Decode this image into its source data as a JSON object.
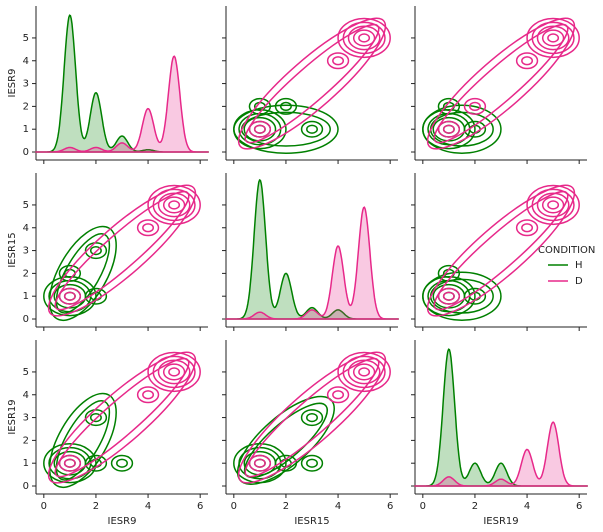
{
  "chart_data": {
    "type": "pairplot",
    "variables": [
      "IESR9",
      "IESR15",
      "IESR19"
    ],
    "legend_title": "CONDITION",
    "xlim": [
      -0.3,
      6.3
    ],
    "xticks": [
      0,
      2,
      4,
      6
    ],
    "ylim": [
      -0.35,
      6.4
    ],
    "yticks": [
      0,
      1,
      2,
      3,
      4,
      5
    ],
    "series": [
      {
        "name": "H",
        "color": "#008000",
        "diagonal": [
          [
            [
              1,
              6.0
            ],
            [
              2,
              2.6
            ],
            [
              3,
              0.7
            ],
            [
              4,
              0.1
            ]
          ],
          [
            [
              1,
              6.1
            ],
            [
              2,
              2.0
            ],
            [
              3,
              0.5
            ],
            [
              4,
              0.4
            ]
          ],
          [
            [
              1,
              6.0
            ],
            [
              2,
              1.0
            ],
            [
              3,
              1.0
            ]
          ]
        ],
        "peaks": [
          [
            null,
            [
              [
                1,
                1
              ],
              [
                1,
                2
              ],
              [
                2,
                2
              ],
              [
                3,
                1
              ]
            ],
            [
              [
                1,
                1
              ],
              [
                1,
                2
              ],
              [
                2,
                1
              ]
            ]
          ],
          [
            [
              [
                1,
                1
              ],
              [
                2,
                1
              ],
              [
                1,
                2
              ],
              [
                2,
                3
              ]
            ],
            null,
            [
              [
                1,
                1
              ],
              [
                1,
                2
              ],
              [
                2,
                1
              ]
            ]
          ],
          [
            [
              [
                1,
                1
              ],
              [
                2,
                1
              ],
              [
                3,
                1
              ],
              [
                2,
                3
              ]
            ],
            [
              [
                1,
                1
              ],
              [
                2,
                1
              ],
              [
                3,
                1
              ],
              [
                3,
                3
              ]
            ],
            null
          ]
        ]
      },
      {
        "name": "D",
        "color": "#e7298a",
        "diagonal": [
          [
            [
              1,
              0.2
            ],
            [
              2,
              0.2
            ],
            [
              3,
              0.4
            ],
            [
              4,
              1.9
            ],
            [
              5,
              4.2
            ]
          ],
          [
            [
              1,
              0.3
            ],
            [
              3,
              0.4
            ],
            [
              4,
              3.2
            ],
            [
              5,
              4.9
            ]
          ],
          [
            [
              1,
              0.4
            ],
            [
              3,
              0.3
            ],
            [
              4,
              1.6
            ],
            [
              5,
              2.8
            ]
          ]
        ],
        "peaks": [
          [
            null,
            [
              [
                5,
                5
              ],
              [
                4,
                4
              ],
              [
                1,
                1
              ]
            ],
            [
              [
                5,
                5
              ],
              [
                4,
                4
              ],
              [
                2,
                2
              ],
              [
                1,
                1
              ]
            ]
          ],
          [
            [
              [
                5,
                5
              ],
              [
                4,
                4
              ],
              [
                1,
                1
              ]
            ],
            null,
            [
              [
                5,
                5
              ],
              [
                4,
                4
              ],
              [
                1,
                1
              ]
            ]
          ],
          [
            [
              [
                5,
                5
              ],
              [
                4,
                4
              ],
              [
                1,
                1
              ]
            ],
            [
              [
                5,
                5
              ],
              [
                4,
                4
              ],
              [
                1,
                1
              ]
            ],
            null
          ]
        ]
      }
    ]
  }
}
